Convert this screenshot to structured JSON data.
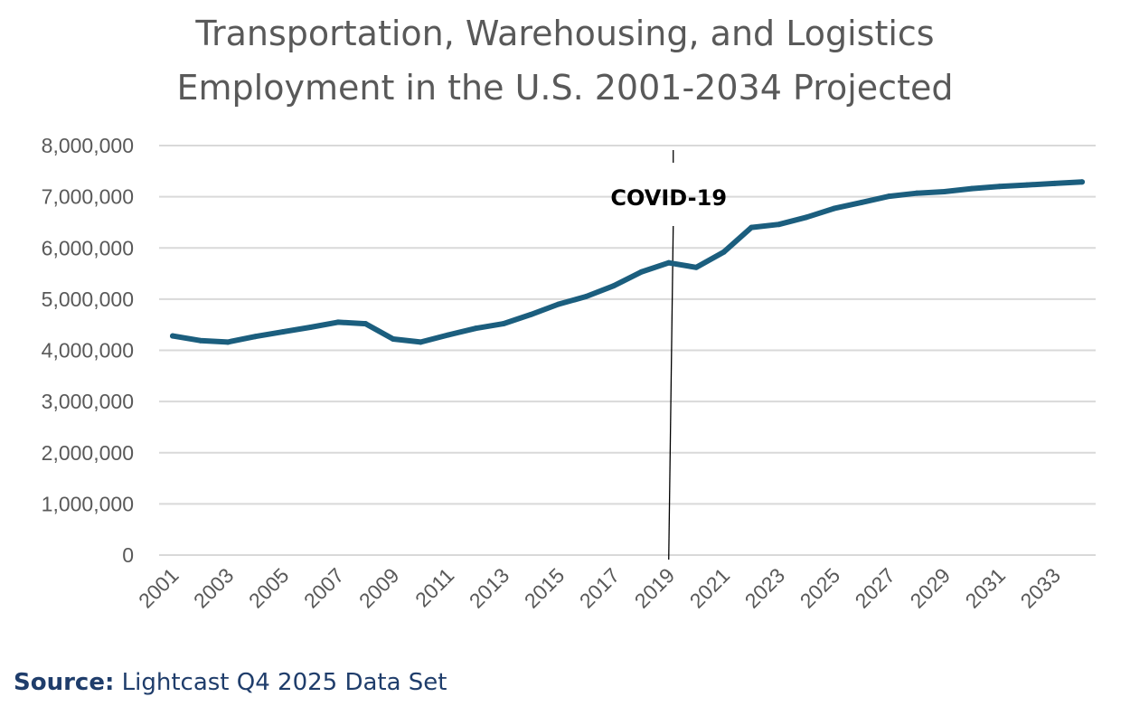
{
  "chart_data": {
    "type": "line",
    "title_lines": [
      "Transportation, Warehousing, and Logistics",
      "Employment in the U.S. 2001-2034 Projected"
    ],
    "xlabel": "",
    "ylabel": "",
    "ylim": [
      0,
      8000000
    ],
    "yticks": [
      "0",
      "1,000,000",
      "2,000,000",
      "3,000,000",
      "4,000,000",
      "5,000,000",
      "6,000,000",
      "7,000,000",
      "8,000,000"
    ],
    "xtick_labels": [
      "2001",
      "2003",
      "2005",
      "2007",
      "2009",
      "2011",
      "2013",
      "2015",
      "2017",
      "2019",
      "2021",
      "2023",
      "2025",
      "2027",
      "2029",
      "2031",
      "2033"
    ],
    "grid": true,
    "legend": "none",
    "line_color": "#1b5e7e",
    "annotation": {
      "label": "COVID-19",
      "x": 2019
    },
    "series": [
      {
        "x": [
          2001,
          2002,
          2003,
          2004,
          2005,
          2006,
          2007,
          2008,
          2009,
          2010,
          2011,
          2012,
          2013,
          2014,
          2015,
          2016,
          2017,
          2018,
          2019,
          2020,
          2021,
          2022,
          2023,
          2024,
          2025,
          2026,
          2027,
          2028,
          2029,
          2030,
          2031,
          2032,
          2033,
          2034
        ],
        "values": [
          4280000,
          4190000,
          4160000,
          4270000,
          4360000,
          4450000,
          4550000,
          4520000,
          4220000,
          4160000,
          4300000,
          4430000,
          4520000,
          4700000,
          4900000,
          5050000,
          5260000,
          5530000,
          5710000,
          5620000,
          5920000,
          6400000,
          6460000,
          6600000,
          6770000,
          6890000,
          7010000,
          7070000,
          7100000,
          7160000,
          7200000,
          7230000,
          7260000,
          7290000
        ]
      }
    ]
  },
  "source": {
    "label": "Source:",
    "text": " Lightcast Q4 2025 Data Set"
  }
}
